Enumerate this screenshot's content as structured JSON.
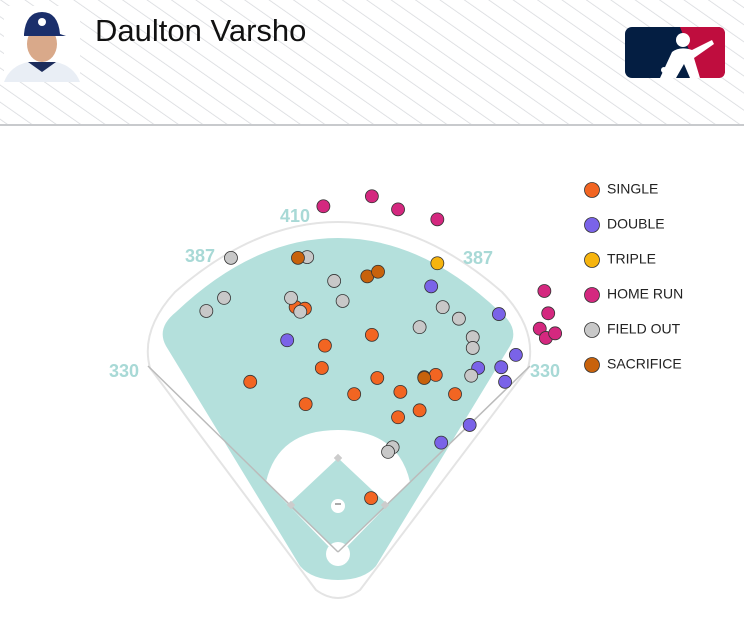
{
  "header": {
    "player_name": "Daulton Varsho"
  },
  "chart_data": {
    "type": "scatter",
    "fence_distances": [
      330,
      387,
      410,
      387,
      330
    ],
    "series": [
      {
        "name": "SINGLE",
        "color": "#f26522",
        "x": [
          -55,
          -43,
          -17,
          44,
          -114,
          -21,
          -42,
          21,
          51,
          81,
          112,
          127,
          78,
          106,
          152,
          43
        ],
        "y": [
          318,
          316,
          268,
          282,
          221,
          239,
          192,
          205,
          226,
          208,
          227,
          230,
          175,
          184,
          205,
          70
        ]
      },
      {
        "name": "DOUBLE",
        "color": "#7a63e8",
        "x": [
          -66,
          121,
          209,
          182,
          212,
          231,
          217,
          171,
          134
        ],
        "y": [
          275,
          345,
          309,
          239,
          240,
          256,
          221,
          165,
          142
        ]
      },
      {
        "name": "TRIPLE",
        "color": "#f6b40e",
        "x": [
          129
        ],
        "y": [
          375
        ]
      },
      {
        "name": "HOME RUN",
        "color": "#d4287f",
        "x": [
          -19,
          44,
          78,
          129,
          268,
          273,
          262,
          270,
          282
        ],
        "y": [
          449,
          462,
          445,
          432,
          339,
          310,
          290,
          278,
          284
        ]
      },
      {
        "name": "FIELD OUT",
        "color": "#c8c8c8",
        "x": [
          -139,
          -148,
          -171,
          -40,
          -5,
          -61,
          -49,
          6,
          136,
          157,
          106,
          175,
          175,
          173,
          71,
          65
        ],
        "y": [
          382,
          330,
          313,
          383,
          352,
          330,
          312,
          326,
          318,
          303,
          292,
          279,
          265,
          229,
          136,
          130
        ]
      },
      {
        "name": "SACRIFICE",
        "color": "#c8620c",
        "x": [
          -52,
          38,
          52,
          112
        ],
        "y": [
          382,
          358,
          364,
          226
        ]
      }
    ]
  }
}
